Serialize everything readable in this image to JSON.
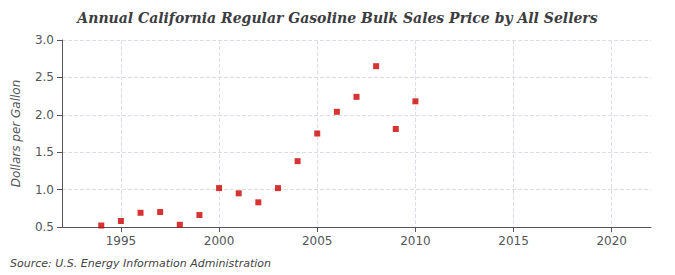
{
  "chart_data": {
    "type": "scatter",
    "title": "Annual California Regular Gasoline Bulk Sales Price by All Sellers",
    "ylabel": "Dollars per Gallon",
    "annotation": "Source: U.S. Energy Information Administration",
    "x": [
      1994,
      1995,
      1996,
      1997,
      1998,
      1999,
      2000,
      2001,
      2002,
      2003,
      2004,
      2005,
      2006,
      2007,
      2008,
      2009,
      2010
    ],
    "values": [
      0.52,
      0.58,
      0.69,
      0.7,
      0.53,
      0.66,
      1.02,
      0.95,
      0.83,
      1.02,
      1.38,
      1.75,
      2.04,
      2.24,
      2.65,
      1.81,
      2.18
    ],
    "color": "#cc0000",
    "marker": "square",
    "xlim": [
      1992,
      2022
    ],
    "xticks": [
      1995,
      2000,
      2005,
      2010,
      2015,
      2020
    ],
    "ylim": [
      0.5,
      3.0
    ],
    "yticks": [
      0.5,
      {
        "value": 1.0,
        "label": "1.0"
      },
      1.5,
      {
        "value": 2.0,
        "label": "2.0"
      },
      2.5,
      {
        "value": 3.0,
        "label": "3.0"
      }
    ],
    "grid": true
  }
}
